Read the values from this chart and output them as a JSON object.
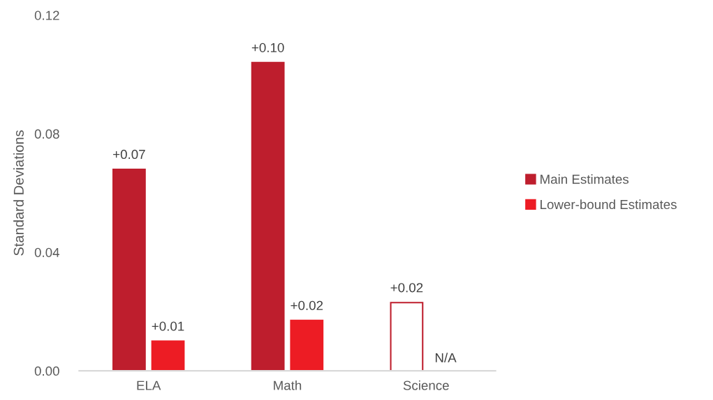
{
  "chart_data": {
    "type": "bar",
    "ylabel": "Standard Deviations",
    "categories": [
      "ELA",
      "Math",
      "Science"
    ],
    "series": [
      {
        "name": "Main Estimates",
        "color": "#be1e2d",
        "colors": [
          "#be1e2d",
          "#be1e2d",
          "#ffffff"
        ],
        "values": [
          0.068,
          0.104,
          0.023
        ],
        "value_labels": [
          "+0.07",
          "+0.10",
          "+0.02"
        ]
      },
      {
        "name": "Lower-bound Estimates",
        "color": "#ed1c24",
        "values": [
          0.01,
          0.017,
          null
        ],
        "value_labels": [
          "+0.01",
          "+0.02",
          "N/A"
        ]
      }
    ],
    "ylim": [
      0,
      0.12
    ],
    "yticks": [
      {
        "value": 0,
        "label": "0.00"
      },
      {
        "value": 0.04,
        "label": "0.04"
      },
      {
        "value": 0.08,
        "label": "0.08"
      },
      {
        "value": 0.12,
        "label": "0.12"
      }
    ],
    "legend": "right",
    "grid": false
  }
}
